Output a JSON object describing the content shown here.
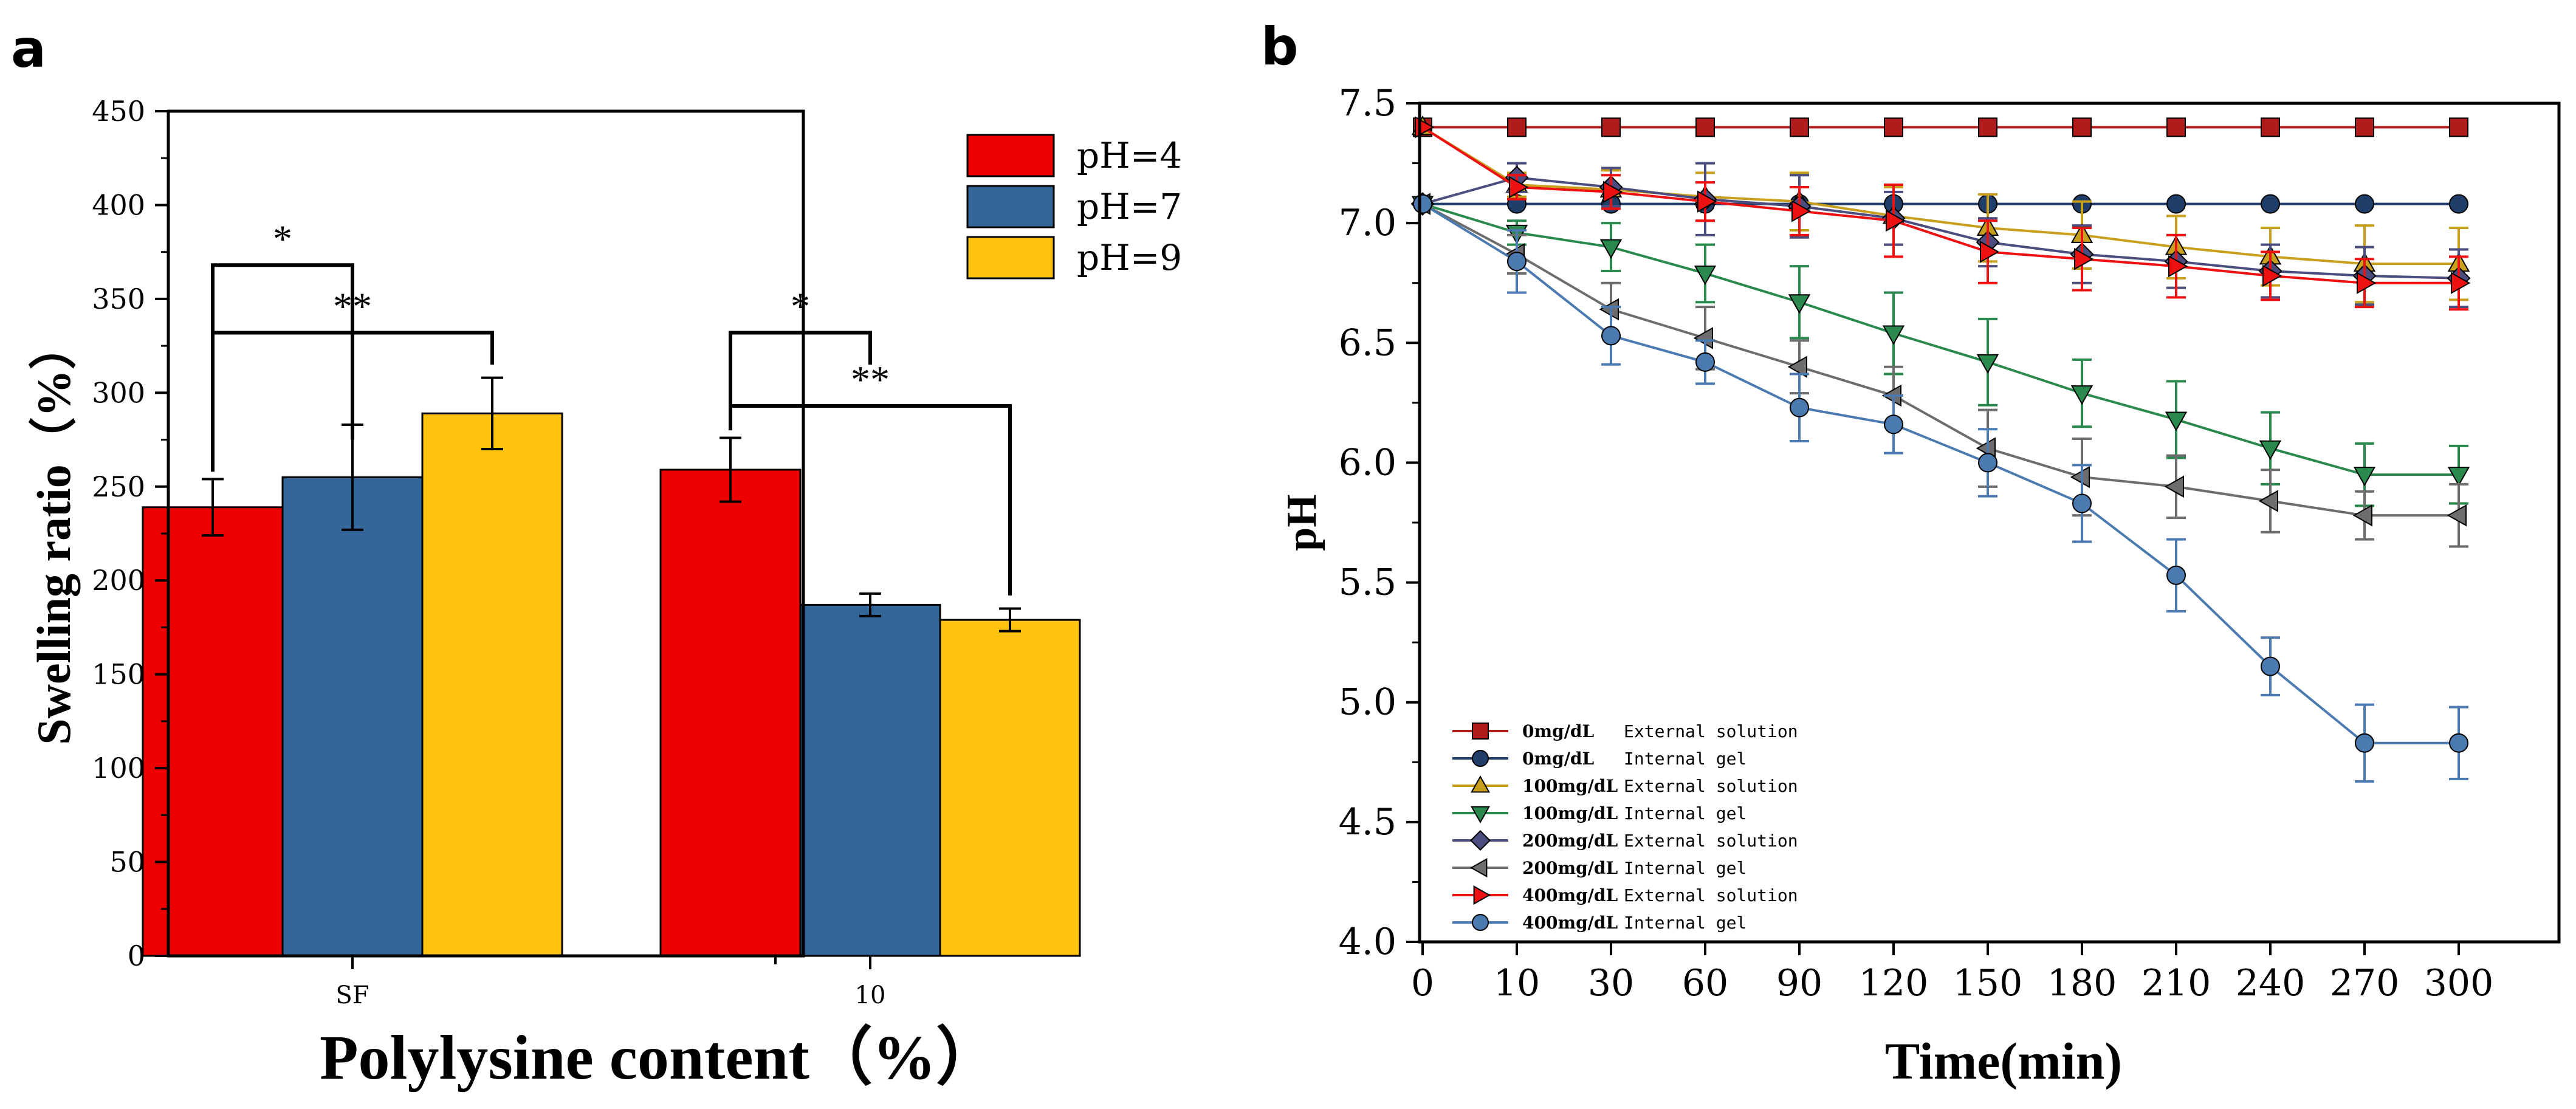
{
  "panels": {
    "a": {
      "letter": "a"
    },
    "b": {
      "letter": "b"
    }
  },
  "chart_data": [
    {
      "type": "bar",
      "panel": "a",
      "xlabel": "Polylysine content（%）",
      "ylabel": "Swelling ratio（%）",
      "ylim": [
        0,
        450
      ],
      "yticks": [
        0,
        50,
        100,
        150,
        200,
        250,
        300,
        350,
        400,
        450
      ],
      "categories": [
        "SF",
        "10"
      ],
      "legend_position": "top-right",
      "series": [
        {
          "name": "pH=4",
          "color": "#ee0000",
          "values": [
            239,
            259
          ],
          "errors": [
            15,
            17
          ]
        },
        {
          "name": "pH=7",
          "color": "#336699",
          "values": [
            255,
            187
          ],
          "errors": [
            28,
            6
          ]
        },
        {
          "name": "pH=9",
          "color": "#ffc20e",
          "values": [
            289,
            179
          ],
          "errors": [
            19,
            6
          ]
        }
      ],
      "annotations": [
        {
          "label": "*",
          "category": 0,
          "from_series": 0,
          "to_series": 1,
          "bracket_top": 368,
          "base": [
            258,
            275
          ]
        },
        {
          "label": "**",
          "category": 0,
          "from_series": 0,
          "to_series": 2,
          "bracket_top": 332,
          "base": [
            258,
            315
          ]
        },
        {
          "label": "*",
          "category": 1,
          "from_series": 0,
          "to_series": 1,
          "bracket_top": 332,
          "base": [
            280,
            315
          ]
        },
        {
          "label": "**",
          "category": 1,
          "from_series": 0,
          "to_series": 2,
          "bracket_top": 293,
          "base": [
            280,
            192
          ]
        }
      ]
    },
    {
      "type": "line",
      "panel": "b",
      "xlabel": "Time(min)",
      "ylabel": "pH",
      "ylim": [
        4.0,
        7.5
      ],
      "yticks": [
        "4.0",
        "4.5",
        "5.0",
        "5.5",
        "6.0",
        "6.5",
        "7.0",
        "7.5"
      ],
      "x": [
        0,
        10,
        30,
        60,
        90,
        120,
        150,
        180,
        210,
        240,
        270,
        300
      ],
      "xtick_labels": [
        "0",
        "10",
        "30",
        "60",
        "90",
        "120",
        "150",
        "180",
        "210",
        "240",
        "270",
        "300"
      ],
      "legend_position": "bottom-left",
      "series": [
        {
          "conc": "0mg/dL",
          "desc": "External solution",
          "marker": "square",
          "color": "#b01c1c",
          "values": [
            7.4,
            7.4,
            7.4,
            7.4,
            7.4,
            7.4,
            7.4,
            7.4,
            7.4,
            7.4,
            7.4,
            7.4
          ],
          "errors": [
            0,
            0,
            0,
            0,
            0,
            0,
            0,
            0,
            0,
            0,
            0,
            0
          ]
        },
        {
          "conc": "0mg/dL",
          "desc": "Internal gel",
          "marker": "circle",
          "color": "#1f3e6a",
          "values": [
            7.08,
            7.08,
            7.08,
            7.08,
            7.08,
            7.08,
            7.08,
            7.08,
            7.08,
            7.08,
            7.08,
            7.08
          ],
          "errors": [
            0,
            0,
            0,
            0,
            0,
            0,
            0,
            0,
            0,
            0,
            0,
            0
          ]
        },
        {
          "conc": "100mg/dL",
          "desc": "External solution",
          "marker": "triangle-up",
          "color": "#c8a01e",
          "values": [
            7.4,
            7.16,
            7.14,
            7.11,
            7.09,
            7.03,
            6.98,
            6.95,
            6.9,
            6.86,
            6.83,
            6.83
          ],
          "errors": [
            0,
            0.05,
            0.08,
            0.1,
            0.12,
            0.12,
            0.14,
            0.14,
            0.13,
            0.12,
            0.16,
            0.15
          ]
        },
        {
          "conc": "100mg/dL",
          "desc": "Internal gel",
          "marker": "triangle-down",
          "color": "#2a8a4e",
          "values": [
            7.08,
            6.96,
            6.9,
            6.79,
            6.67,
            6.54,
            6.42,
            6.29,
            6.18,
            6.06,
            5.95,
            5.95
          ],
          "errors": [
            0,
            0.05,
            0.1,
            0.12,
            0.15,
            0.17,
            0.18,
            0.14,
            0.16,
            0.15,
            0.13,
            0.12
          ]
        },
        {
          "conc": "200mg/dL",
          "desc": "External solution",
          "marker": "diamond",
          "color": "#4a4d7e",
          "values": [
            7.08,
            7.19,
            7.15,
            7.1,
            7.07,
            7.02,
            6.92,
            6.87,
            6.84,
            6.8,
            6.78,
            6.77
          ],
          "errors": [
            0,
            0.06,
            0.08,
            0.15,
            0.13,
            0.11,
            0.1,
            0.12,
            0.11,
            0.11,
            0.12,
            0.12
          ]
        },
        {
          "conc": "200mg/dL",
          "desc": "Internal gel",
          "marker": "triangle-left",
          "color": "#6d6d6d",
          "values": [
            7.08,
            6.87,
            6.64,
            6.52,
            6.4,
            6.28,
            6.06,
            5.94,
            5.9,
            5.84,
            5.78,
            5.78
          ],
          "errors": [
            0,
            0.08,
            0.11,
            0.13,
            0.11,
            0.12,
            0.16,
            0.16,
            0.13,
            0.13,
            0.1,
            0.13
          ]
        },
        {
          "conc": "400mg/dL",
          "desc": "External solution",
          "marker": "triangle-right",
          "color": "#ee1111",
          "values": [
            7.4,
            7.15,
            7.13,
            7.09,
            7.05,
            7.01,
            6.88,
            6.85,
            6.82,
            6.78,
            6.75,
            6.75
          ],
          "errors": [
            0,
            0.05,
            0.07,
            0.08,
            0.1,
            0.15,
            0.13,
            0.13,
            0.13,
            0.1,
            0.1,
            0.11
          ]
        },
        {
          "conc": "400mg/dL",
          "desc": "Internal gel",
          "marker": "circle",
          "color": "#4a7ab0",
          "values": [
            7.08,
            6.84,
            6.53,
            6.42,
            6.23,
            6.16,
            6.0,
            5.83,
            5.53,
            5.15,
            4.83,
            4.83
          ],
          "errors": [
            0,
            0.13,
            0.12,
            0.09,
            0.14,
            0.12,
            0.14,
            0.16,
            0.15,
            0.12,
            0.16,
            0.15
          ]
        }
      ]
    }
  ]
}
